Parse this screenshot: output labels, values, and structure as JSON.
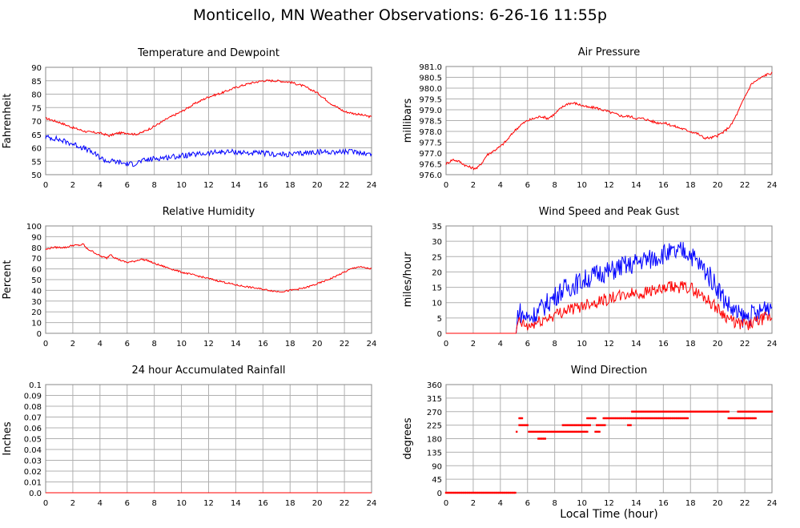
{
  "page": {
    "title": "Monticello, MN Weather Observations: 6-26-16 11:55p",
    "xaxis_label": "Local Time (hour)"
  },
  "colors": {
    "red": "#ff0000",
    "blue": "#0000ff",
    "grid": "#b0b0b0",
    "frame": "#888888"
  },
  "chart_data": [
    {
      "id": "temp",
      "type": "line",
      "title": "Temperature and Dewpoint",
      "ylabel": "Fahrenheit",
      "xlim": [
        0,
        24
      ],
      "ylim": [
        50,
        90
      ],
      "yticks": [
        "50",
        "55",
        "60",
        "65",
        "70",
        "75",
        "80",
        "85",
        "90"
      ],
      "xticks": [
        "0",
        "2",
        "4",
        "6",
        "8",
        "10",
        "12",
        "14",
        "16",
        "18",
        "20",
        "22",
        "24"
      ],
      "grid": true,
      "series": [
        {
          "color": "red",
          "noise": 0.4,
          "x": [
            0,
            1,
            2,
            3,
            4,
            4.7,
            5.3,
            6,
            6.6,
            7,
            8,
            9,
            10,
            11,
            12,
            13,
            14,
            15,
            16,
            17,
            18,
            19,
            20,
            21,
            22,
            23,
            24
          ],
          "y": [
            71,
            69.5,
            67.5,
            66,
            65.5,
            64.5,
            65.5,
            65.5,
            65,
            65.5,
            68,
            71,
            73.5,
            76.5,
            79,
            80.5,
            82.5,
            84,
            85,
            85,
            84.5,
            83,
            80.5,
            76.5,
            73.5,
            72.5,
            71.5
          ]
        },
        {
          "color": "blue",
          "noise": 1.0,
          "x": [
            0,
            0.7,
            1,
            2,
            3,
            4,
            4.5,
            5,
            5.5,
            6,
            6.5,
            7,
            8,
            9,
            10,
            11,
            12,
            13,
            14,
            15,
            16,
            17,
            18,
            19,
            20,
            21,
            22,
            23,
            24
          ],
          "y": [
            64,
            63.5,
            63,
            61.5,
            59.5,
            56.5,
            55,
            55,
            54.5,
            54,
            54,
            55,
            56,
            56.5,
            57,
            57.5,
            58,
            58.5,
            58.5,
            58,
            58,
            57.5,
            57.5,
            58,
            58.5,
            58.5,
            58.5,
            58.5,
            57.5
          ]
        }
      ]
    },
    {
      "id": "pressure",
      "type": "line",
      "title": "Air Pressure",
      "ylabel": "millibars",
      "xlim": [
        0,
        24
      ],
      "ylim": [
        976.0,
        981.0
      ],
      "yticks": [
        "976.0",
        "976.5",
        "977.0",
        "977.5",
        "978.0",
        "978.5",
        "979.0",
        "979.5",
        "980.0",
        "980.5",
        "981.0"
      ],
      "xticks": [
        "0",
        "2",
        "4",
        "6",
        "8",
        "10",
        "12",
        "14",
        "16",
        "18",
        "20",
        "22",
        "24"
      ],
      "grid": true,
      "series": [
        {
          "color": "red",
          "noise": 0.06,
          "x": [
            0,
            0.5,
            1,
            1.5,
            2,
            2.3,
            2.7,
            3,
            3.5,
            4,
            4.5,
            5,
            5.5,
            6,
            6.5,
            7,
            7.5,
            8,
            8.5,
            9,
            9.5,
            10,
            10.5,
            11,
            11.5,
            12,
            12.5,
            13,
            13.5,
            14,
            14.5,
            15,
            15.5,
            16,
            16.5,
            17,
            17.5,
            18,
            18.5,
            19,
            19.5,
            20,
            20.5,
            21,
            21.5,
            22,
            22.5,
            23,
            23.5,
            24
          ],
          "y": [
            976.5,
            976.7,
            976.6,
            976.4,
            976.3,
            976.3,
            976.6,
            976.9,
            977.1,
            977.3,
            977.6,
            978.0,
            978.3,
            978.5,
            978.6,
            978.7,
            978.6,
            978.8,
            979.1,
            979.3,
            979.3,
            979.2,
            979.1,
            979.1,
            979.0,
            978.9,
            978.8,
            978.7,
            978.7,
            978.6,
            978.6,
            978.5,
            978.4,
            978.4,
            978.3,
            978.2,
            978.1,
            978.0,
            977.9,
            977.7,
            977.7,
            977.8,
            978.0,
            978.3,
            978.9,
            979.6,
            980.2,
            980.4,
            980.6,
            980.7
          ]
        }
      ]
    },
    {
      "id": "humidity",
      "type": "line",
      "title": "Relative Humidity",
      "ylabel": "Percent",
      "xlim": [
        0,
        24
      ],
      "ylim": [
        0,
        100
      ],
      "yticks": [
        "0",
        "10",
        "20",
        "30",
        "40",
        "50",
        "60",
        "70",
        "80",
        "90",
        "100"
      ],
      "xticks": [
        "0",
        "2",
        "4",
        "6",
        "8",
        "10",
        "12",
        "14",
        "16",
        "18",
        "20",
        "22",
        "24"
      ],
      "grid": true,
      "series": [
        {
          "color": "red",
          "noise": 0.8,
          "x": [
            0,
            0.5,
            1,
            1.5,
            2,
            2.5,
            2.8,
            3,
            3.5,
            4,
            4.5,
            4.8,
            5,
            5.5,
            6,
            6.5,
            7,
            7.5,
            8,
            8.5,
            9,
            10,
            11,
            12,
            13,
            14,
            15,
            16,
            16.5,
            17,
            17.5,
            18,
            18.5,
            19,
            20,
            21,
            22,
            22.5,
            23,
            23.5,
            24
          ],
          "y": [
            78,
            80,
            80,
            80,
            82,
            82,
            83,
            79,
            76,
            72,
            70,
            74,
            71,
            68,
            66,
            67,
            69,
            68,
            65,
            63,
            61,
            57,
            54,
            51,
            48,
            45,
            43,
            41,
            40,
            39,
            39,
            40,
            41,
            42,
            46,
            51,
            57,
            60,
            62,
            61,
            60
          ]
        }
      ]
    },
    {
      "id": "wind",
      "type": "line",
      "title": "Wind Speed and Peak Gust",
      "ylabel": "miles/hour",
      "xlim": [
        0,
        24
      ],
      "ylim": [
        0,
        35
      ],
      "yticks": [
        "0",
        "5",
        "10",
        "15",
        "20",
        "25",
        "30",
        "35"
      ],
      "xticks": [
        "0",
        "2",
        "4",
        "6",
        "8",
        "10",
        "12",
        "14",
        "16",
        "18",
        "20",
        "22",
        "24"
      ],
      "grid": true,
      "series": [
        {
          "color": "blue",
          "noise": 3.5,
          "x": [
            0,
            5.2,
            5.3,
            5.6,
            6,
            6.5,
            7,
            7.5,
            8,
            8.5,
            9,
            9.5,
            10,
            10.5,
            11,
            11.5,
            12,
            12.5,
            13,
            13.5,
            14,
            14.5,
            15,
            15.5,
            16,
            16.5,
            17,
            17.5,
            18,
            18.5,
            19,
            19.5,
            20,
            20.5,
            21,
            21.5,
            22,
            22.5,
            23,
            23.5,
            24
          ],
          "y": [
            0,
            0,
            8,
            6,
            5,
            6,
            8,
            10,
            12,
            14,
            15,
            16,
            17,
            18,
            19,
            20,
            20,
            21,
            22,
            22,
            23,
            24,
            24,
            25,
            26,
            26,
            26,
            27,
            26,
            23,
            21,
            18,
            15,
            11,
            8,
            6,
            5,
            6,
            6,
            9,
            9
          ]
        },
        {
          "color": "red",
          "noise": 2.0,
          "x": [
            0,
            5.2,
            5.3,
            5.6,
            6,
            6.5,
            7,
            7.5,
            8,
            8.5,
            9,
            9.5,
            10,
            10.5,
            11,
            11.5,
            12,
            12.5,
            13,
            13.5,
            14,
            14.5,
            15,
            15.5,
            16,
            16.5,
            17,
            17.5,
            18,
            18.5,
            19,
            19.5,
            20,
            20.5,
            21,
            21.5,
            22,
            22.5,
            23,
            23.5,
            24
          ],
          "y": [
            0,
            0,
            4,
            3,
            2,
            3,
            4,
            5,
            6,
            7,
            8,
            8,
            9,
            10,
            10,
            11,
            11,
            12,
            12,
            13,
            13,
            13,
            14,
            14,
            14,
            15,
            15,
            15,
            15,
            13,
            12,
            10,
            8,
            6,
            4,
            3,
            3,
            3,
            4,
            5,
            5
          ]
        }
      ]
    },
    {
      "id": "rain",
      "type": "line",
      "title": "24 hour Accumulated Rainfall",
      "ylabel": "Inches",
      "xlim": [
        0,
        24
      ],
      "ylim": [
        0,
        0.1
      ],
      "yticks": [
        "0.0",
        "0.01",
        "0.02",
        "0.03",
        "0.04",
        "0.05",
        "0.06",
        "0.07",
        "0.08",
        "0.09",
        "0.1"
      ],
      "xticks": [
        "0",
        "2",
        "4",
        "6",
        "8",
        "10",
        "12",
        "14",
        "16",
        "18",
        "20",
        "22",
        "24"
      ],
      "grid": true,
      "series": [
        {
          "color": "red",
          "noise": 0,
          "x": [
            0,
            24
          ],
          "y": [
            0,
            0
          ]
        }
      ]
    },
    {
      "id": "direction",
      "type": "scatter",
      "title": "Wind Direction",
      "ylabel": "degrees",
      "xlim": [
        0,
        24
      ],
      "ylim": [
        0,
        360
      ],
      "yticks": [
        "0",
        "45",
        "90",
        "135",
        "180",
        "225",
        "270",
        "315",
        "360"
      ],
      "xticks": [
        "0",
        "2",
        "4",
        "6",
        "8",
        "10",
        "12",
        "14",
        "16",
        "18",
        "20",
        "22",
        "24"
      ],
      "grid": true,
      "points": [
        {
          "x0": 0,
          "x1": 5.1,
          "y": 0,
          "step": 0.1
        },
        {
          "x0": 5.2,
          "x1": 5.2,
          "y": 203,
          "step": 0.1
        },
        {
          "x0": 5.4,
          "x1": 5.6,
          "y": 248,
          "step": 0.1
        },
        {
          "x0": 5.4,
          "x1": 6.0,
          "y": 225,
          "step": 0.1
        },
        {
          "x0": 6.1,
          "x1": 10.4,
          "y": 203,
          "step": 0.1
        },
        {
          "x0": 6.8,
          "x1": 7.3,
          "y": 180,
          "step": 0.1
        },
        {
          "x0": 8.6,
          "x1": 10.6,
          "y": 225,
          "step": 0.1
        },
        {
          "x0": 10.4,
          "x1": 11.0,
          "y": 248,
          "step": 0.1
        },
        {
          "x0": 11.1,
          "x1": 11.7,
          "y": 225,
          "step": 0.1
        },
        {
          "x0": 11.0,
          "x1": 11.3,
          "y": 203,
          "step": 0.1
        },
        {
          "x0": 11.6,
          "x1": 17.8,
          "y": 248,
          "step": 0.1
        },
        {
          "x0": 13.4,
          "x1": 13.6,
          "y": 225,
          "step": 0.1
        },
        {
          "x0": 13.7,
          "x1": 20.8,
          "y": 270,
          "step": 0.1
        },
        {
          "x0": 20.8,
          "x1": 22.8,
          "y": 248,
          "step": 0.1
        },
        {
          "x0": 21.5,
          "x1": 24.0,
          "y": 270,
          "step": 0.1
        }
      ]
    }
  ]
}
